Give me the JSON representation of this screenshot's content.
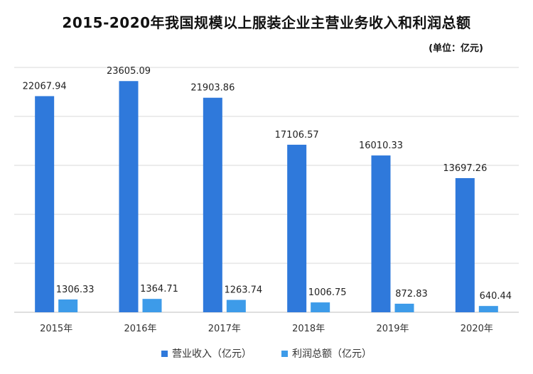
{
  "colors": {
    "revenue": "#2f79db",
    "profit": "#3d9be9",
    "grid": "#d9d9d9",
    "axis": "#bfbfbf"
  },
  "chart_data": {
    "type": "bar",
    "title": "2015-2020年我国规模以上服装企业主营业务收入和利润总额",
    "unit": "(单位：亿元)",
    "categories": [
      "2015年",
      "2016年",
      "2017年",
      "2018年",
      "2019年",
      "2020年"
    ],
    "series": [
      {
        "name": "营业收入（亿元）",
        "values": [
          22067.94,
          23605.09,
          21903.86,
          17106.57,
          16010.33,
          13697.26
        ],
        "labels": [
          "22067.94",
          "23605.09",
          "21903.86",
          "17106.57",
          "16010.33",
          "13697.26"
        ]
      },
      {
        "name": "利润总额（亿元）",
        "values": [
          1306.33,
          1364.71,
          1263.74,
          1006.75,
          872.83,
          640.44
        ],
        "labels": [
          "1306.33",
          "1364.71",
          "1263.74",
          "1006.75",
          "872.83",
          "640.44"
        ]
      }
    ],
    "ylim": [
      0,
      25000
    ],
    "grid": true,
    "legend_position": "bottom"
  }
}
